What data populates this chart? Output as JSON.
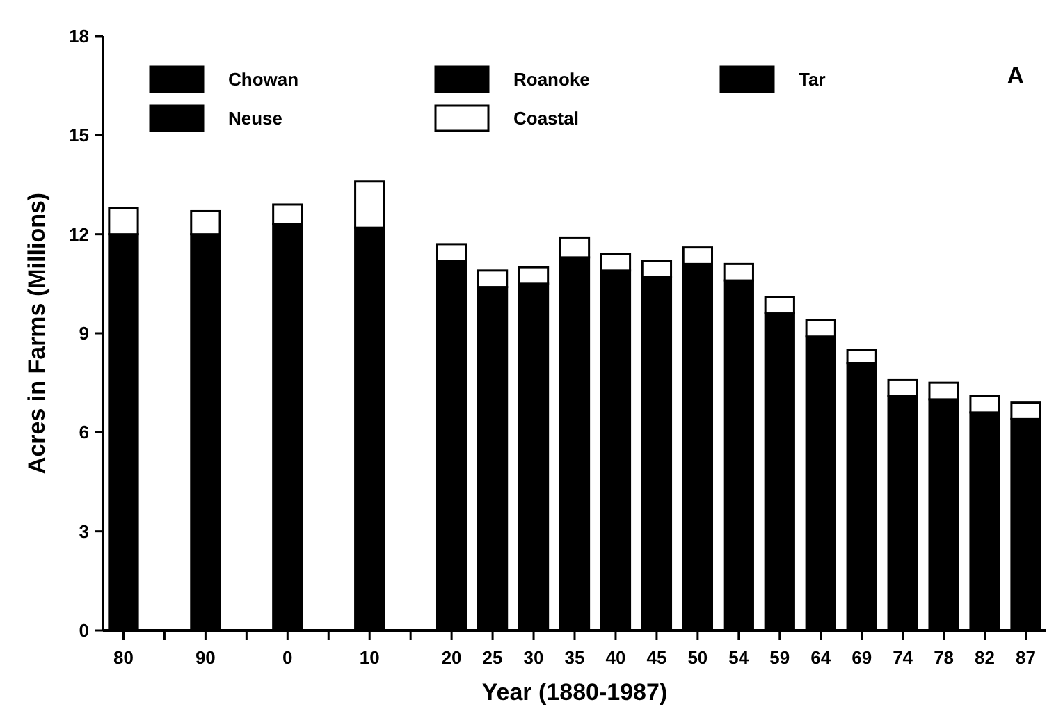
{
  "chart_data": {
    "type": "bar",
    "stacked": true,
    "xlabel": "Year (1880-1987)",
    "ylabel": "Acres in Farms (Millions)",
    "categories": [
      "80",
      null,
      "90",
      null,
      "0",
      null,
      "10",
      null,
      "20",
      "25",
      "30",
      "35",
      "40",
      "45",
      "50",
      "54",
      "59",
      "64",
      "69",
      "74",
      "78",
      "82",
      "87"
    ],
    "series": [
      {
        "color": "#000000",
        "values": [
          12.0,
          null,
          12.0,
          null,
          12.3,
          null,
          12.2,
          null,
          11.2,
          10.4,
          10.5,
          11.3,
          10.9,
          10.7,
          11.1,
          10.6,
          9.6,
          8.9,
          8.1,
          7.1,
          7.0,
          6.6,
          6.4
        ]
      },
      {
        "name": "Chowan",
        "color": "#000000",
        "values": [
          null,
          null,
          null,
          null,
          null,
          null,
          null,
          null,
          null,
          null,
          null,
          null,
          null,
          null,
          null,
          null,
          null,
          null,
          null,
          null,
          null,
          null,
          null
        ]
      },
      {
        "name": "Roanoke",
        "color": "#000000",
        "values": [
          null,
          null,
          null,
          null,
          null,
          null,
          null,
          null,
          null,
          null,
          null,
          null,
          null,
          null,
          null,
          null,
          null,
          null,
          null,
          null,
          null,
          null,
          null
        ]
      },
      {
        "name": "Tar",
        "color": "#000000",
        "values": [
          null,
          null,
          null,
          null,
          null,
          null,
          null,
          null,
          null,
          null,
          null,
          null,
          null,
          null,
          null,
          null,
          null,
          null,
          null,
          null,
          null,
          null,
          null
        ]
      },
      {
        "name": "Neuse",
        "color": "#000000",
        "values": [
          null,
          null,
          null,
          null,
          null,
          null,
          null,
          null,
          null,
          null,
          null,
          null,
          null,
          null,
          null,
          null,
          null,
          null,
          null,
          null,
          null,
          null,
          null
        ]
      },
      {
        "name": "Coastal",
        "color": "#ffffff",
        "values": [
          0.8,
          null,
          0.7,
          null,
          0.6,
          null,
          1.4,
          null,
          0.5,
          0.5,
          0.5,
          0.6,
          0.5,
          0.5,
          0.5,
          0.5,
          0.5,
          0.5,
          0.4,
          0.5,
          0.5,
          0.5,
          0.5
        ]
      }
    ],
    "ylim": [
      0,
      18
    ],
    "yticks": [
      0,
      3,
      6,
      9,
      12,
      15,
      18
    ],
    "grid": false,
    "legend": "top",
    "annotations": [
      "A"
    ]
  }
}
